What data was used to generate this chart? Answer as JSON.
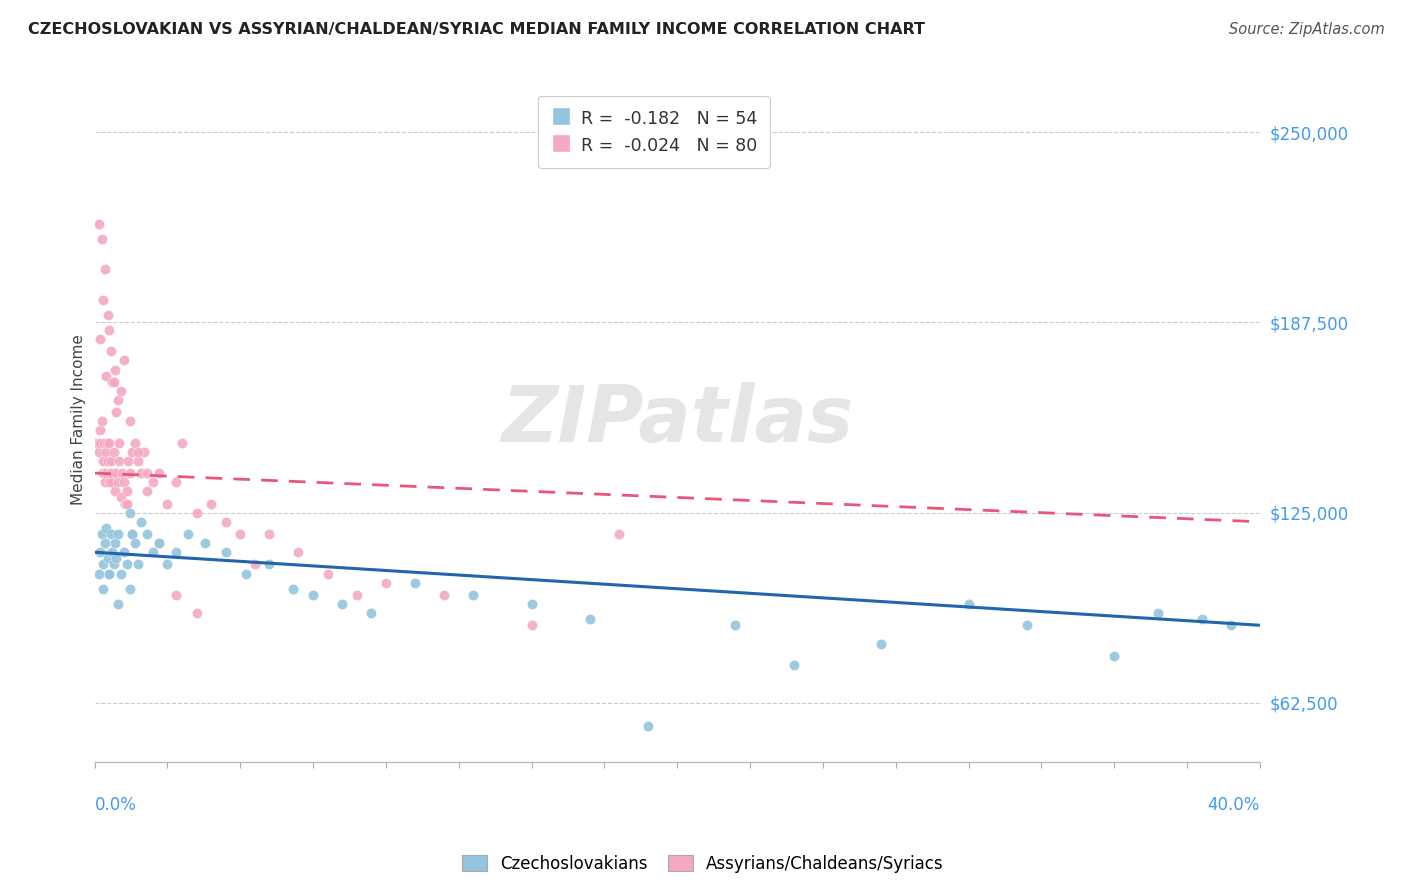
{
  "title": "CZECHOSLOVAKIAN VS ASSYRIAN/CHALDEAN/SYRIAC MEDIAN FAMILY INCOME CORRELATION CHART",
  "source": "Source: ZipAtlas.com",
  "ylabel": "Median Family Income",
  "yticks": [
    62500,
    125000,
    187500,
    250000
  ],
  "ytick_labels": [
    "$62,500",
    "$125,000",
    "$187,500",
    "$250,000"
  ],
  "xlim": [
    0.0,
    40.0
  ],
  "ylim": [
    43000,
    268000
  ],
  "legend_r1": "R =  -0.182",
  "legend_n1": "N = 54",
  "legend_r2": "R =  -0.024",
  "legend_n2": "N = 80",
  "color_czech": "#92C5DE",
  "color_assyrian": "#F4A9C0",
  "color_czech_line": "#2166AC",
  "color_assyrian_line": "#E8567A",
  "watermark": "ZIPatlas",
  "czech_scatter_x": [
    0.15,
    0.2,
    0.25,
    0.3,
    0.35,
    0.4,
    0.45,
    0.5,
    0.55,
    0.6,
    0.65,
    0.7,
    0.75,
    0.8,
    0.9,
    1.0,
    1.1,
    1.2,
    1.3,
    1.4,
    1.5,
    1.6,
    1.8,
    2.0,
    2.2,
    2.5,
    2.8,
    3.2,
    3.8,
    4.5,
    5.2,
    6.0,
    6.8,
    7.5,
    8.5,
    9.5,
    11.0,
    13.0,
    15.0,
    17.0,
    19.0,
    22.0,
    24.0,
    27.0,
    30.0,
    32.0,
    35.0,
    36.5,
    38.0,
    39.0,
    0.3,
    0.5,
    0.8,
    1.2
  ],
  "czech_scatter_y": [
    105000,
    112000,
    118000,
    108000,
    115000,
    120000,
    110000,
    105000,
    118000,
    112000,
    108000,
    115000,
    110000,
    118000,
    105000,
    112000,
    108000,
    125000,
    118000,
    115000,
    108000,
    122000,
    118000,
    112000,
    115000,
    108000,
    112000,
    118000,
    115000,
    112000,
    105000,
    108000,
    100000,
    98000,
    95000,
    92000,
    102000,
    98000,
    95000,
    90000,
    55000,
    88000,
    75000,
    82000,
    95000,
    88000,
    78000,
    92000,
    90000,
    88000,
    100000,
    105000,
    95000,
    100000
  ],
  "assyrian_scatter_x": [
    0.1,
    0.15,
    0.18,
    0.2,
    0.25,
    0.28,
    0.3,
    0.32,
    0.35,
    0.38,
    0.4,
    0.42,
    0.45,
    0.48,
    0.5,
    0.52,
    0.55,
    0.58,
    0.6,
    0.65,
    0.7,
    0.75,
    0.8,
    0.85,
    0.9,
    0.95,
    1.0,
    1.05,
    1.1,
    1.15,
    1.2,
    1.3,
    1.4,
    1.5,
    1.6,
    1.7,
    1.8,
    2.0,
    2.2,
    2.5,
    2.8,
    3.0,
    3.5,
    4.0,
    4.5,
    5.0,
    5.5,
    6.0,
    7.0,
    8.0,
    9.0,
    10.0,
    12.0,
    15.0,
    18.0,
    0.2,
    0.3,
    0.4,
    0.5,
    0.6,
    0.7,
    0.8,
    0.9,
    1.0,
    1.2,
    1.5,
    1.8,
    2.2,
    2.8,
    3.5,
    0.15,
    0.25,
    0.35,
    0.45,
    0.55,
    0.65,
    0.75,
    0.85,
    1.1,
    1.3
  ],
  "assyrian_scatter_y": [
    148000,
    145000,
    152000,
    148000,
    155000,
    142000,
    138000,
    148000,
    135000,
    145000,
    138000,
    148000,
    142000,
    135000,
    148000,
    138000,
    135000,
    142000,
    138000,
    145000,
    132000,
    138000,
    135000,
    142000,
    130000,
    138000,
    135000,
    128000,
    132000,
    142000,
    138000,
    145000,
    148000,
    142000,
    138000,
    145000,
    132000,
    135000,
    138000,
    128000,
    135000,
    148000,
    125000,
    128000,
    122000,
    118000,
    108000,
    118000,
    112000,
    105000,
    98000,
    102000,
    98000,
    88000,
    118000,
    182000,
    195000,
    170000,
    185000,
    168000,
    172000,
    162000,
    165000,
    175000,
    155000,
    145000,
    138000,
    115000,
    98000,
    92000,
    220000,
    215000,
    205000,
    190000,
    178000,
    168000,
    158000,
    148000,
    128000,
    118000
  ]
}
